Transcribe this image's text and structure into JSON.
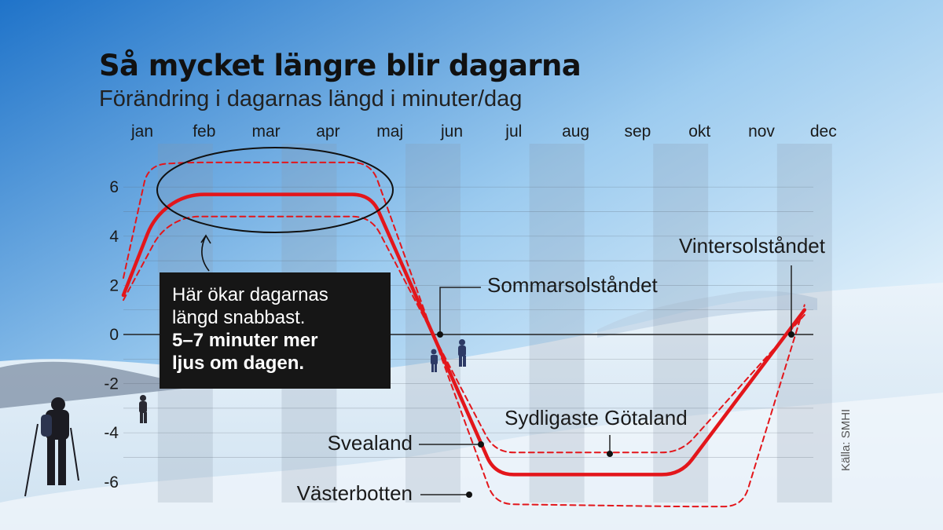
{
  "chart_data": {
    "type": "line",
    "title": "Så mycket längre blir dagarna",
    "subtitle": "Förändring i dagarnas längd i minuter/dag",
    "x_categories": [
      "jan",
      "feb",
      "mar",
      "apr",
      "maj",
      "jun",
      "jul",
      "aug",
      "sep",
      "okt",
      "nov",
      "dec"
    ],
    "ylim": [
      -7,
      7
    ],
    "yticks": [
      6,
      4,
      2,
      0,
      -2,
      -4,
      -6
    ],
    "series": [
      {
        "name": "Svealand",
        "style": "solid",
        "color": "#e3161b",
        "points": [
          [
            1,
            1.6
          ],
          [
            1.5,
            4.8
          ],
          [
            2,
            5.7
          ],
          [
            5,
            5.7
          ],
          [
            6,
            0
          ],
          [
            7,
            -5.7
          ],
          [
            10,
            -5.7
          ],
          [
            12,
            1.0
          ]
        ]
      },
      {
        "name": "Västerbotten",
        "style": "dashed",
        "color": "#e3161b",
        "points": [
          [
            1,
            2.3
          ],
          [
            1.4,
            6.9
          ],
          [
            2,
            7.0
          ],
          [
            5,
            7.0
          ],
          [
            6,
            0
          ],
          [
            7,
            -6.9
          ],
          [
            10,
            -7.0
          ],
          [
            11,
            -7.0
          ],
          [
            12,
            1.2
          ]
        ]
      },
      {
        "name": "Sydligaste Götaland",
        "style": "dashed",
        "color": "#e3161b",
        "points": [
          [
            1,
            1.4
          ],
          [
            1.6,
            4.2
          ],
          [
            2,
            4.8
          ],
          [
            5,
            4.8
          ],
          [
            6,
            0
          ],
          [
            7,
            -4.8
          ],
          [
            10,
            -4.8
          ],
          [
            12,
            0.8
          ]
        ]
      }
    ],
    "annotations": {
      "sommarsolstandet": "Sommarsolståndet",
      "vintersolstandet": "Vintersolståndet",
      "sydligaste": "Sydligaste Götaland",
      "svealand": "Svealand",
      "vasterbotten": "Västerbotten"
    },
    "callout": {
      "line1": "Här ökar dagarnas",
      "line2": "längd snabbast.",
      "bold1": "5–7 minuter mer",
      "bold2": "ljus om dagen."
    },
    "source": "Källa: SMHI"
  }
}
